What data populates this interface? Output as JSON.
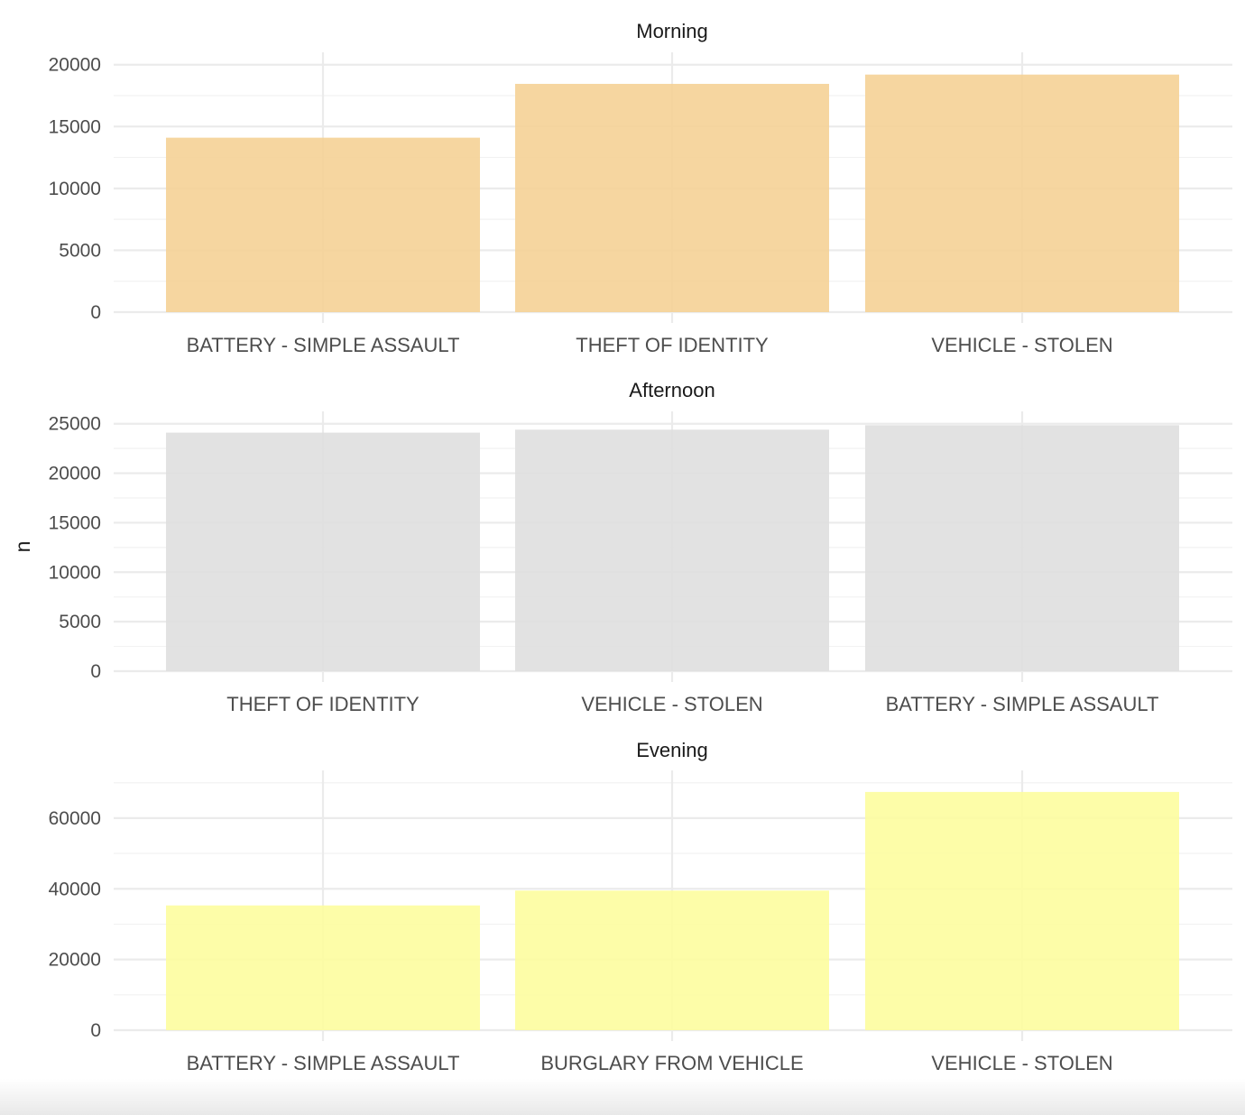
{
  "chart_data": {
    "type": "bar",
    "ylabel": "n",
    "grid": true,
    "facets": [
      {
        "title": "Morning",
        "categories": [
          "BATTERY - SIMPLE ASSAULT",
          "THEFT OF IDENTITY",
          "VEHICLE - STOLEN"
        ],
        "values": [
          14100,
          18450,
          19200
        ],
        "ylim": [
          0,
          20000
        ],
        "yticks": [
          0,
          5000,
          10000,
          15000,
          20000
        ],
        "color": "#f5d296"
      },
      {
        "title": "Afternoon",
        "categories": [
          "THEFT OF IDENTITY",
          "VEHICLE - STOLEN",
          "BATTERY - SIMPLE ASSAULT"
        ],
        "values": [
          24100,
          24400,
          24850
        ],
        "ylim": [
          0,
          25000
        ],
        "yticks": [
          0,
          5000,
          10000,
          15000,
          20000,
          25000
        ],
        "color": "#dfdfdf"
      },
      {
        "title": "Evening",
        "categories": [
          "BATTERY - SIMPLE ASSAULT",
          "BURGLARY FROM VEHICLE",
          "VEHICLE - STOLEN"
        ],
        "values": [
          35300,
          39500,
          67400
        ],
        "ylim": [
          0,
          70000
        ],
        "yticks": [
          0,
          20000,
          40000,
          60000
        ],
        "color": "#fdfd9e"
      }
    ]
  }
}
